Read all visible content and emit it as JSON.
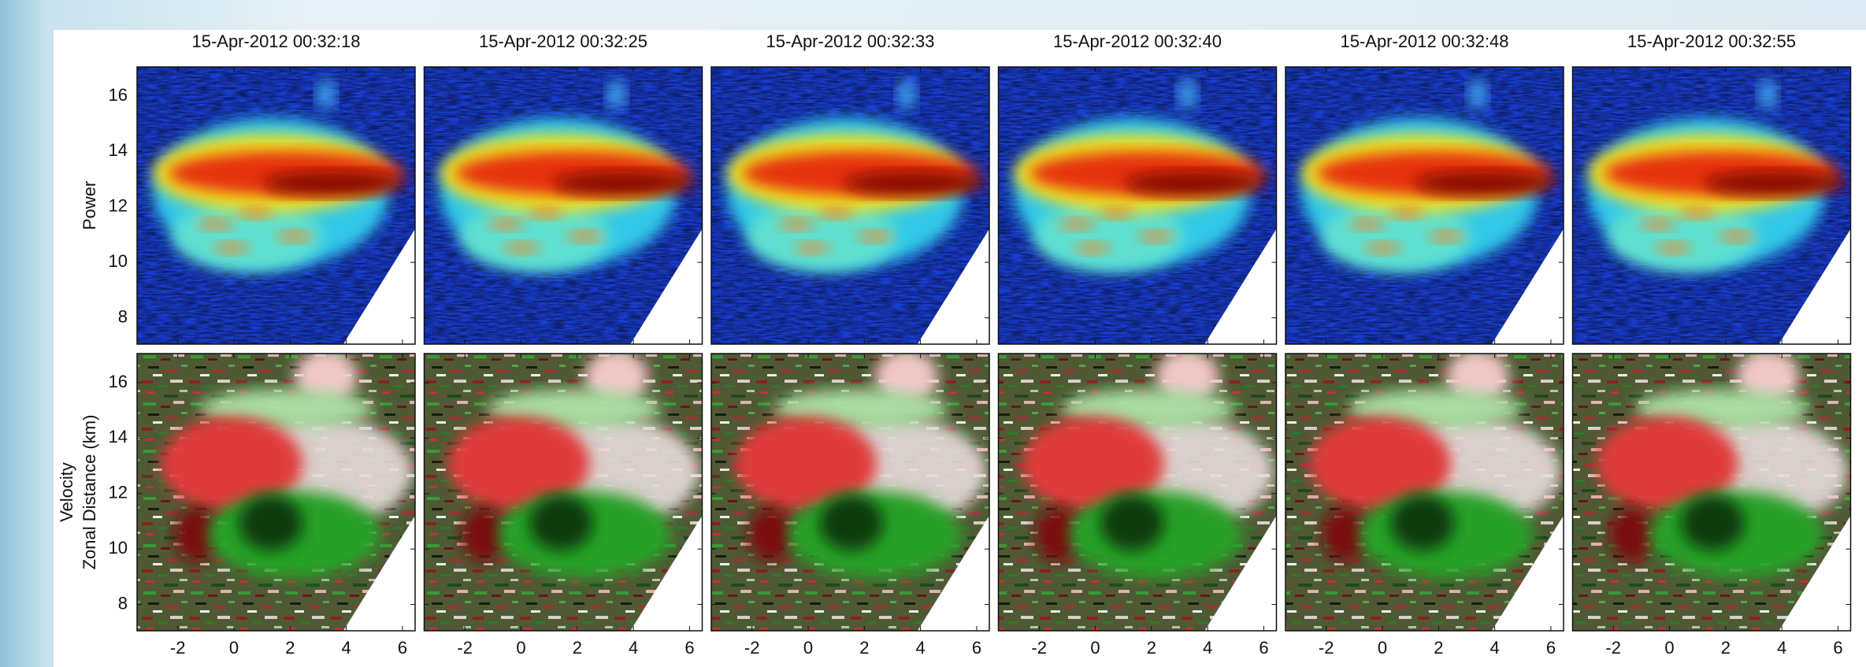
{
  "columns": [
    {
      "title": "15-Apr-2012 00:32:18"
    },
    {
      "title": "15-Apr-2012 00:32:25"
    },
    {
      "title": "15-Apr-2012 00:32:33"
    },
    {
      "title": "15-Apr-2012 00:32:40"
    },
    {
      "title": "15-Apr-2012 00:32:48"
    },
    {
      "title": "15-Apr-2012 00:32:55"
    }
  ],
  "rows": [
    {
      "label": "Power"
    },
    {
      "label": "Velocity"
    }
  ],
  "y_axis_label": "Zonal Distance (km)",
  "xlim": [
    -3.45,
    6.45
  ],
  "xticks": [
    -2,
    0,
    2,
    4,
    6
  ],
  "ylim": [
    7.05,
    17.05
  ],
  "yticks": [
    8,
    10,
    12,
    14,
    16
  ]
}
